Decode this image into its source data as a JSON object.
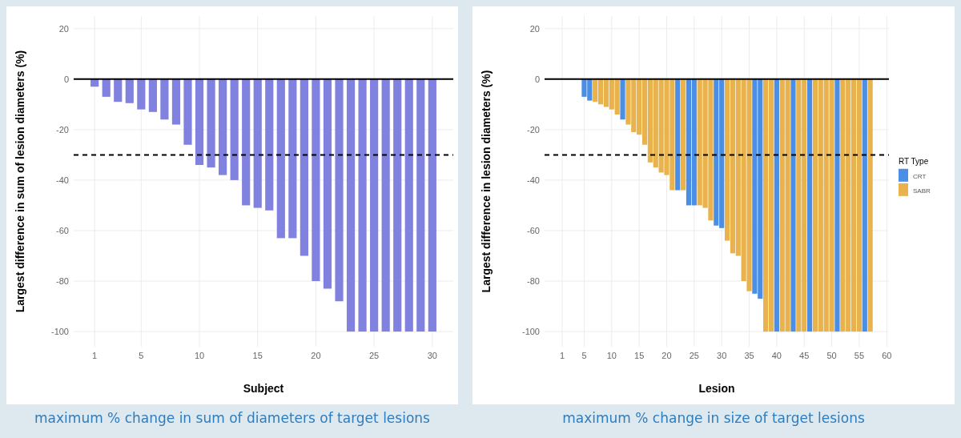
{
  "chart_data": [
    {
      "type": "bar",
      "xlabel": "Subject",
      "ylabel": "Largest difference in sum of lesion diameters (%)",
      "x": [
        1,
        2,
        3,
        4,
        5,
        6,
        7,
        8,
        9,
        10,
        11,
        12,
        13,
        14,
        15,
        16,
        17,
        18,
        19,
        20,
        21,
        22,
        23,
        24,
        25,
        26,
        27,
        28,
        29,
        30
      ],
      "values": [
        -3,
        -7,
        -9,
        -9.5,
        -12,
        -13,
        -16,
        -18,
        -26,
        -34,
        -35,
        -38,
        -40,
        -50,
        -51,
        -52,
        -63,
        -63,
        -70,
        -80,
        -83,
        -88,
        -100,
        -100,
        -100,
        -100,
        -100,
        -100,
        -100,
        -100
      ],
      "color": "#8181e0",
      "xlim": [
        -0.8,
        31.8
      ],
      "xticks": [
        1,
        5,
        10,
        15,
        20,
        25,
        30
      ],
      "ylim": [
        -106,
        25
      ],
      "yticks": [
        20,
        0,
        -20,
        -40,
        -60,
        -80,
        -100
      ],
      "grid": true,
      "ref_lines": [
        {
          "axis": "y",
          "value": 0,
          "line_style": "solid"
        },
        {
          "axis": "y",
          "value": -30,
          "line_style": "dashed"
        }
      ],
      "annotations": [
        "maximum % change in sum of diameters of target lesions"
      ]
    },
    {
      "type": "bar",
      "xlabel": "Lesion",
      "ylabel": "Largest difference in lesion diameters (%)",
      "legend_title": "RT Type",
      "legend": "right",
      "x": [
        5,
        6,
        7,
        8,
        9,
        10,
        11,
        12,
        13,
        14,
        15,
        16,
        17,
        18,
        19,
        20,
        21,
        22,
        23,
        24,
        25,
        26,
        27,
        28,
        29,
        30,
        31,
        32,
        33,
        34,
        35,
        36,
        37,
        38,
        39,
        40,
        41,
        42,
        43,
        44,
        45,
        46,
        47,
        48,
        49,
        50,
        51,
        52,
        53,
        54,
        55,
        56,
        57
      ],
      "series": [
        {
          "name": "CRT",
          "color": "#4a8ee6",
          "values": [
            -7,
            -8.5,
            null,
            null,
            null,
            null,
            null,
            -16,
            null,
            null,
            null,
            null,
            null,
            null,
            null,
            null,
            null,
            -44,
            null,
            -50,
            -50,
            null,
            null,
            null,
            -58,
            -59,
            null,
            null,
            null,
            null,
            null,
            -85,
            -87,
            null,
            null,
            -100,
            null,
            null,
            -100,
            null,
            null,
            -100,
            null,
            null,
            null,
            null,
            -100,
            null,
            null,
            null,
            null,
            -100,
            null
          ]
        },
        {
          "name": "SABR",
          "color": "#e8b24c",
          "values": [
            null,
            null,
            -9,
            -10,
            -11,
            -12,
            -14,
            null,
            -18,
            -21,
            -22,
            -26,
            -33,
            -35,
            -37,
            -38,
            -44,
            null,
            -44,
            null,
            null,
            -50,
            -51,
            -56,
            null,
            null,
            -64,
            -69,
            -70,
            -80,
            -84,
            null,
            null,
            -100,
            -100,
            null,
            -100,
            -100,
            null,
            -100,
            -100,
            null,
            -100,
            -100,
            -100,
            -100,
            null,
            -100,
            -100,
            -100,
            -100,
            null,
            -100
          ]
        }
      ],
      "xlim": [
        -2.2,
        60.4
      ],
      "xticks": [
        1,
        5,
        10,
        15,
        20,
        25,
        30,
        35,
        40,
        45,
        50,
        55,
        60
      ],
      "ylim": [
        -106,
        25
      ],
      "yticks": [
        20,
        0,
        -20,
        -40,
        -60,
        -80,
        -100
      ],
      "grid": true,
      "ref_lines": [
        {
          "axis": "y",
          "value": 0,
          "line_style": "solid"
        },
        {
          "axis": "y",
          "value": -30,
          "line_style": "dashed"
        }
      ],
      "annotations": [
        "maximum % change in size of target lesions"
      ]
    }
  ]
}
